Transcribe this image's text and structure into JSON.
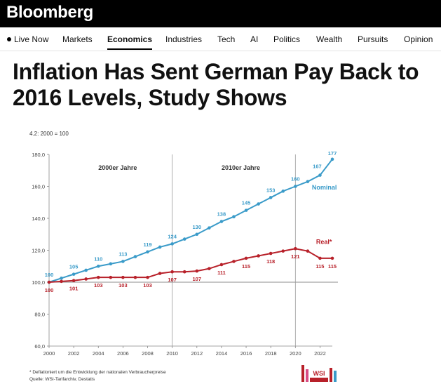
{
  "brand": {
    "name": "Bloomberg"
  },
  "nav": {
    "items": [
      {
        "label": "Live Now",
        "active": false,
        "live": true
      },
      {
        "label": "Markets",
        "active": false
      },
      {
        "label": "Economics",
        "active": true
      },
      {
        "label": "Industries",
        "active": false
      },
      {
        "label": "Tech",
        "active": false
      },
      {
        "label": "AI",
        "active": false
      },
      {
        "label": "Politics",
        "active": false
      },
      {
        "label": "Wealth",
        "active": false
      },
      {
        "label": "Pursuits",
        "active": false
      },
      {
        "label": "Opinion",
        "active": false
      }
    ]
  },
  "article": {
    "headline": "Inflation Has Sent German Pay Back to 2016 Levels, Study Shows"
  },
  "chart_data": {
    "type": "line",
    "title": "",
    "index_label": "4.2: 2000 = 100",
    "xlabel": "",
    "ylabel": "",
    "ylim": [
      60,
      180
    ],
    "xlim": [
      2000,
      2023
    ],
    "x_ticks": [
      "2000",
      "2002",
      "2004",
      "2006",
      "2008",
      "2010",
      "2012",
      "2014",
      "2016",
      "2018",
      "2020",
      "2022"
    ],
    "y_ticks": [
      "60,0",
      "80,0",
      "100,0",
      "120,0",
      "140,0",
      "160,0",
      "180,0"
    ],
    "grid": false,
    "period_labels": [
      "2000er Jahre",
      "2010er Jahre"
    ],
    "series": [
      {
        "name": "Nominal",
        "color": "#3a9bc9",
        "x": [
          2000,
          2001,
          2002,
          2003,
          2004,
          2005,
          2006,
          2007,
          2008,
          2009,
          2010,
          2011,
          2012,
          2013,
          2014,
          2015,
          2016,
          2017,
          2018,
          2019,
          2020,
          2021,
          2022,
          2023
        ],
        "values": [
          100,
          102.5,
          105,
          107.5,
          110,
          111.5,
          113,
          116,
          119,
          122,
          124,
          127,
          130,
          134,
          138,
          141,
          145,
          149,
          153,
          157,
          160,
          163,
          167,
          177
        ],
        "labels": [
          {
            "x": 2000,
            "text": "100"
          },
          {
            "x": 2002,
            "text": "105"
          },
          {
            "x": 2004,
            "text": "110"
          },
          {
            "x": 2006,
            "text": "113"
          },
          {
            "x": 2008,
            "text": "119"
          },
          {
            "x": 2010,
            "text": "124"
          },
          {
            "x": 2012,
            "text": "130"
          },
          {
            "x": 2014,
            "text": "138"
          },
          {
            "x": 2016,
            "text": "145"
          },
          {
            "x": 2018,
            "text": "153"
          },
          {
            "x": 2020,
            "text": "160"
          },
          {
            "x": 2022,
            "text": "167"
          },
          {
            "x": 2023,
            "text": "177"
          }
        ]
      },
      {
        "name": "Real*",
        "color": "#b8212a",
        "x": [
          2000,
          2001,
          2002,
          2003,
          2004,
          2005,
          2006,
          2007,
          2008,
          2009,
          2010,
          2011,
          2012,
          2013,
          2014,
          2015,
          2016,
          2017,
          2018,
          2019,
          2020,
          2021,
          2022,
          2023
        ],
        "values": [
          100,
          100.5,
          101,
          102,
          103,
          103,
          103,
          103,
          103,
          105.5,
          106.5,
          106.5,
          107,
          108.5,
          111,
          113,
          115,
          116.5,
          118,
          119.5,
          121,
          119.5,
          115,
          115
        ],
        "labels": [
          {
            "x": 2000,
            "text": "100"
          },
          {
            "x": 2002,
            "text": "101"
          },
          {
            "x": 2004,
            "text": "103"
          },
          {
            "x": 2006,
            "text": "103"
          },
          {
            "x": 2008,
            "text": "103"
          },
          {
            "x": 2010,
            "text": "107"
          },
          {
            "x": 2012,
            "text": "107"
          },
          {
            "x": 2014,
            "text": "111"
          },
          {
            "x": 2016,
            "text": "115"
          },
          {
            "x": 2018,
            "text": "118"
          },
          {
            "x": 2020,
            "text": "121"
          },
          {
            "x": 2022,
            "text": "115"
          },
          {
            "x": 2023,
            "text": "115"
          }
        ]
      }
    ],
    "footnote": "* Deflationiert um die Entwicklung der nationalen Verbraucherpreise",
    "source": "Quelle: WSI-Tarifarchiv, Destatis",
    "logo_text": "WSI"
  }
}
